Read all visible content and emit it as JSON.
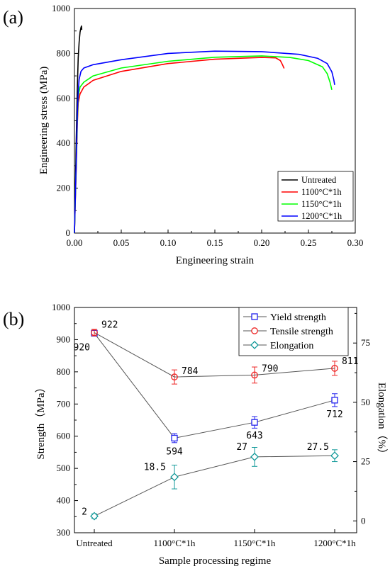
{
  "chart_data": [
    {
      "type": "line",
      "panel_label": "(a)",
      "xlabel": "Engineering strain",
      "ylabel": "Engineering stress (MPa)",
      "xlim": [
        0,
        0.3
      ],
      "ylim": [
        0,
        1000
      ],
      "x_ticks": [
        0.0,
        0.05,
        0.1,
        0.15,
        0.2,
        0.25,
        0.3
      ],
      "x_tick_labels": [
        "0.00",
        "0.05",
        "0.10",
        "0.15",
        "0.20",
        "0.25",
        "0.30"
      ],
      "y_ticks": [
        0,
        200,
        400,
        600,
        800,
        1000
      ],
      "y_tick_labels": [
        "0",
        "200",
        "400",
        "600",
        "800",
        "1000"
      ],
      "legend_position": "bottom-right",
      "series": [
        {
          "name": "Untreated",
          "color": "#000000",
          "points": [
            [
              0,
              0
            ],
            [
              0.001,
              210
            ],
            [
              0.002,
              430
            ],
            [
              0.003,
              640
            ],
            [
              0.004,
              780
            ],
            [
              0.005,
              850
            ],
            [
              0.006,
              895
            ],
            [
              0.007,
              915
            ],
            [
              0.0075,
              922
            ],
            [
              0.0078,
              905
            ]
          ]
        },
        {
          "name": "1100°C*1h",
          "color": "#ff0000",
          "points": [
            [
              0,
              0
            ],
            [
              0.002,
              300
            ],
            [
              0.003,
              480
            ],
            [
              0.004,
              580
            ],
            [
              0.006,
              620
            ],
            [
              0.01,
              650
            ],
            [
              0.02,
              680
            ],
            [
              0.05,
              720
            ],
            [
              0.1,
              755
            ],
            [
              0.15,
              774
            ],
            [
              0.2,
              782
            ],
            [
              0.215,
              780
            ],
            [
              0.22,
              768
            ],
            [
              0.222,
              752
            ],
            [
              0.224,
              733
            ]
          ]
        },
        {
          "name": "1150°C*1h",
          "color": "#00ff00",
          "points": [
            [
              0,
              0
            ],
            [
              0.002,
              320
            ],
            [
              0.003,
              500
            ],
            [
              0.004,
              610
            ],
            [
              0.006,
              650
            ],
            [
              0.01,
              672
            ],
            [
              0.02,
              700
            ],
            [
              0.05,
              735
            ],
            [
              0.1,
              765
            ],
            [
              0.15,
              783
            ],
            [
              0.2,
              789
            ],
            [
              0.23,
              782
            ],
            [
              0.25,
              768
            ],
            [
              0.265,
              740
            ],
            [
              0.27,
              710
            ],
            [
              0.273,
              672
            ],
            [
              0.275,
              638
            ]
          ]
        },
        {
          "name": "1200°C*1h",
          "color": "#0000ff",
          "points": [
            [
              0,
              0
            ],
            [
              0.002,
              330
            ],
            [
              0.003,
              520
            ],
            [
              0.004,
              630
            ],
            [
              0.005,
              685
            ],
            [
              0.007,
              720
            ],
            [
              0.01,
              735
            ],
            [
              0.02,
              750
            ],
            [
              0.05,
              772
            ],
            [
              0.1,
              800
            ],
            [
              0.15,
              810
            ],
            [
              0.2,
              808
            ],
            [
              0.24,
              796
            ],
            [
              0.26,
              778
            ],
            [
              0.27,
              755
            ],
            [
              0.275,
              718
            ],
            [
              0.277,
              685
            ],
            [
              0.278,
              660
            ]
          ]
        }
      ]
    },
    {
      "type": "line",
      "panel_label": "(b)",
      "xlabel": "Sample processing regime",
      "ylabel": "Strength（MPa）",
      "y2label": "Elongation（%）",
      "categories": [
        "Untreated",
        "1100°C*1h",
        "1150°C*1h",
        "1200°C*1h"
      ],
      "ylim": [
        300,
        1000
      ],
      "y_ticks": [
        300,
        400,
        500,
        600,
        700,
        800,
        900,
        1000
      ],
      "y_tick_labels": [
        "300",
        "400",
        "500",
        "600",
        "700",
        "800",
        "900",
        "1000"
      ],
      "y2lim": [
        -5,
        90
      ],
      "y2_ticks": [
        0,
        25,
        50,
        75
      ],
      "y2_tick_labels": [
        "0",
        "25",
        "50",
        "75"
      ],
      "legend_position": "top-right",
      "series": [
        {
          "name": "Yield strength",
          "axis": "left",
          "marker": "square",
          "color": "#2222ee",
          "line_color": "#555555",
          "values": [
            920,
            594,
            643,
            712
          ],
          "errors": [
            6,
            14,
            18,
            20
          ],
          "labels": [
            "920",
            "594",
            "643",
            "712"
          ]
        },
        {
          "name": "Tensile strength",
          "axis": "left",
          "marker": "circle",
          "color": "#ee2222",
          "line_color": "#555555",
          "values": [
            922,
            784,
            790,
            811
          ],
          "errors": [
            10,
            22,
            25,
            22
          ],
          "labels": [
            "922",
            "784",
            "790",
            "811"
          ]
        },
        {
          "name": "Elongation",
          "axis": "right",
          "marker": "diamond",
          "color": "#119999",
          "line_color": "#555555",
          "values": [
            2,
            18.5,
            27,
            27.5
          ],
          "errors": [
            1,
            5,
            4,
            2.5
          ],
          "labels": [
            "2",
            "18.5",
            "27",
            "27.5"
          ]
        }
      ]
    }
  ]
}
